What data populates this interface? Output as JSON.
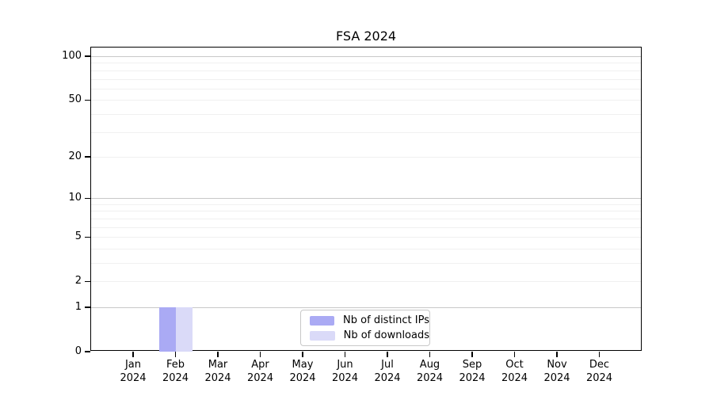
{
  "chart_data": {
    "type": "bar",
    "title": "FSA 2024",
    "categories": [
      {
        "month": "Jan",
        "year": "2024"
      },
      {
        "month": "Feb",
        "year": "2024"
      },
      {
        "month": "Mar",
        "year": "2024"
      },
      {
        "month": "Apr",
        "year": "2024"
      },
      {
        "month": "May",
        "year": "2024"
      },
      {
        "month": "Jun",
        "year": "2024"
      },
      {
        "month": "Jul",
        "year": "2024"
      },
      {
        "month": "Aug",
        "year": "2024"
      },
      {
        "month": "Sep",
        "year": "2024"
      },
      {
        "month": "Oct",
        "year": "2024"
      },
      {
        "month": "Nov",
        "year": "2024"
      },
      {
        "month": "Dec",
        "year": "2024"
      }
    ],
    "series": [
      {
        "name": "Nb of distinct IPs",
        "color": "#aaaaf4",
        "values": [
          0,
          1,
          0,
          0,
          0,
          0,
          0,
          0,
          0,
          0,
          0,
          0
        ]
      },
      {
        "name": "Nb of downloads",
        "color": "#dadaf8",
        "values": [
          0,
          1,
          0,
          0,
          0,
          0,
          0,
          0,
          0,
          0,
          0,
          0
        ]
      }
    ],
    "y_axis": {
      "scale": "log1p",
      "tick_labels": [
        0,
        1,
        2,
        5,
        10,
        20,
        50,
        100
      ],
      "major_gridlines": [
        1,
        10,
        100
      ],
      "minor_gridlines": [
        2,
        3,
        4,
        5,
        6,
        7,
        8,
        9,
        20,
        30,
        40,
        50,
        60,
        70,
        80,
        90
      ],
      "ylim": [
        0,
        100
      ]
    },
    "legend": {
      "position": "lower-center",
      "entries": [
        "Nb of distinct IPs",
        "Nb of downloads"
      ]
    },
    "grid": true
  },
  "colors": {
    "grid_major": "#c8c8c8",
    "grid_minor": "#f0f0f0",
    "axis": "#000000",
    "background": "#ffffff"
  }
}
